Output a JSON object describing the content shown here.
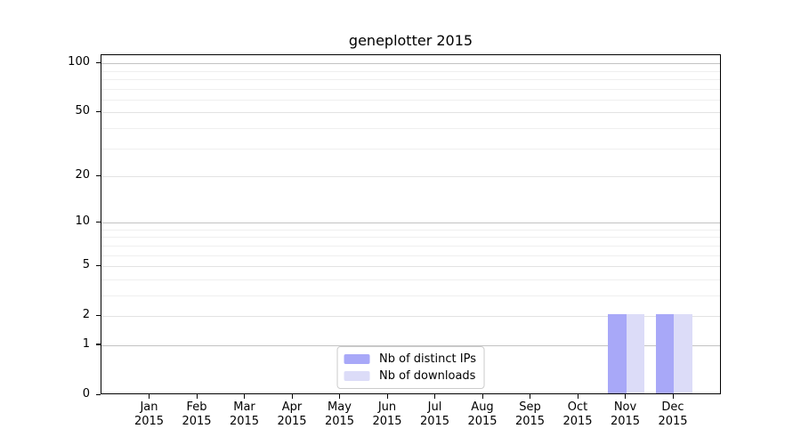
{
  "title": "geneplotter 2015",
  "chart_data": {
    "type": "bar",
    "title": "geneplotter 2015",
    "categories": [
      "Jan",
      "Feb",
      "Mar",
      "Apr",
      "May",
      "Jun",
      "Jul",
      "Aug",
      "Sep",
      "Oct",
      "Nov",
      "Dec"
    ],
    "category_year": "2015",
    "series": [
      {
        "name": "Nb of distinct IPs",
        "color": "#a8a8f8",
        "values": [
          0,
          0,
          0,
          0,
          0,
          0,
          0,
          0,
          0,
          0,
          2,
          2
        ]
      },
      {
        "name": "Nb of downloads",
        "color": "#dcdcf8",
        "values": [
          0,
          0,
          0,
          0,
          0,
          0,
          0,
          0,
          0,
          0,
          2,
          2
        ]
      }
    ],
    "xlabel": "",
    "ylabel": "",
    "yscale": "log1p",
    "ylim": [
      0,
      112
    ],
    "yticks": [
      0,
      1,
      2,
      5,
      10,
      20,
      50,
      100
    ],
    "minor_yticks": [
      3,
      4,
      6,
      7,
      8,
      9,
      30,
      40,
      60,
      70,
      80,
      90
    ],
    "decade_yticks": [
      1,
      10,
      100
    ],
    "grid": "on",
    "legend_position": "lower center"
  },
  "colors": {
    "background": "#ffffff",
    "axis": "#000000",
    "grid_decade": "#c3c3c3",
    "grid_labeled": "#e3e3e3",
    "grid_minor": "#efefef",
    "legend_border": "#cccccc"
  }
}
